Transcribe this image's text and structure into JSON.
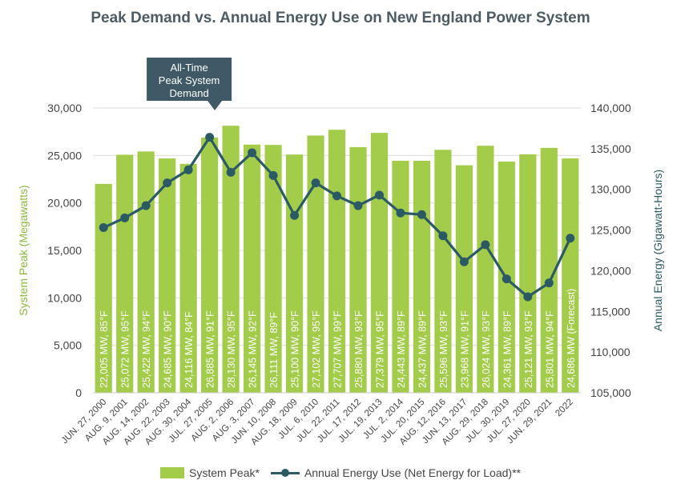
{
  "chart_data": {
    "type": "bar",
    "title": "Peak Demand vs. Annual Energy Use on New England Power System",
    "categories": [
      "JUN. 27, 2000",
      "AUG. 9, 2001",
      "AUG. 14, 2002",
      "AUG. 22, 2003",
      "AUG. 30, 2004",
      "JUL. 27, 2005",
      "AUG. 2, 2006",
      "AUG. 3, 2007",
      "JUN. 10, 2008",
      "AUG. 18, 2009",
      "JUL. 6, 2010",
      "JUL. 22, 2011",
      "JUL. 17, 2012",
      "JUL. 19, 2013",
      "JUL. 2, 2014",
      "JUL. 20, 2015",
      "AUG. 12, 2016",
      "JUN. 13, 2017",
      "AUG. 29, 2018",
      "JUL. 30, 2019",
      "JUL. 27, 2020",
      "JUN. 29, 2021",
      "2022"
    ],
    "series": [
      {
        "name": "System Peak*",
        "kind": "bar",
        "axis": "left",
        "color": "#a3cc4a",
        "values": [
          22005,
          25072,
          25422,
          24685,
          24116,
          26885,
          28130,
          26145,
          26111,
          25100,
          27102,
          27707,
          25880,
          27379,
          24443,
          24437,
          25596,
          23968,
          26024,
          24361,
          25121,
          25801,
          24686
        ],
        "bar_labels": [
          "22,005 MW, 85°F",
          "25,072 MW, 95°F",
          "25,422 MW, 94°F",
          "24,685 MW, 90°F",
          "24,116 MW, 84°F",
          "26,885 MW, 91°F",
          "28,130 MW, 95°F",
          "26,145 MW, 92°F",
          "26,111 MW, 89°F",
          "25,100 MW, 90°F",
          "27,102 MW, 95°F",
          "27,707 MW, 99°F",
          "25,880 MW, 93°F",
          "27,379 MW, 95°F",
          "24,443 MW, 89°F",
          "24,437 MW, 89°F",
          "25,596 MW, 93°F",
          "23,968 MW, 91°F",
          "26,024 MW, 93°F",
          "24,361 MW, 89°F",
          "25,121 MW, 93°F",
          "25,801 MW, 94°F",
          "24,686 MW (Forecast)"
        ]
      },
      {
        "name": "Annual Energy Use (Net Energy for Load)**",
        "kind": "line",
        "axis": "right",
        "color": "#2c5a64",
        "values": [
          125300,
          126500,
          128000,
          130800,
          132400,
          136400,
          132100,
          134500,
          131700,
          126800,
          130800,
          129200,
          128000,
          129300,
          127100,
          126900,
          124300,
          121100,
          123200,
          119000,
          116800,
          118500,
          124000
        ]
      }
    ],
    "ylabel_left": "System Peak (Megawatts)",
    "ylabel_right": "Annual Energy (Gigawatt-Hours)",
    "ylim_left": [
      0,
      30000
    ],
    "ylim_right": [
      105000,
      140000
    ],
    "yticks_left": [
      "0",
      "5,000",
      "10,000",
      "15,000",
      "20,000",
      "25,000",
      "30,000"
    ],
    "yticks_right": [
      "105,000",
      "110,000",
      "115,000",
      "120,000",
      "125,000",
      "130,000",
      "135,000",
      "140,000"
    ],
    "grid": true,
    "legend_position": "bottom",
    "annotation": {
      "lines": [
        "All-Time",
        "Peak System",
        "Demand"
      ],
      "target_category": "AUG. 2, 2006",
      "color": "#3f5a66"
    }
  }
}
